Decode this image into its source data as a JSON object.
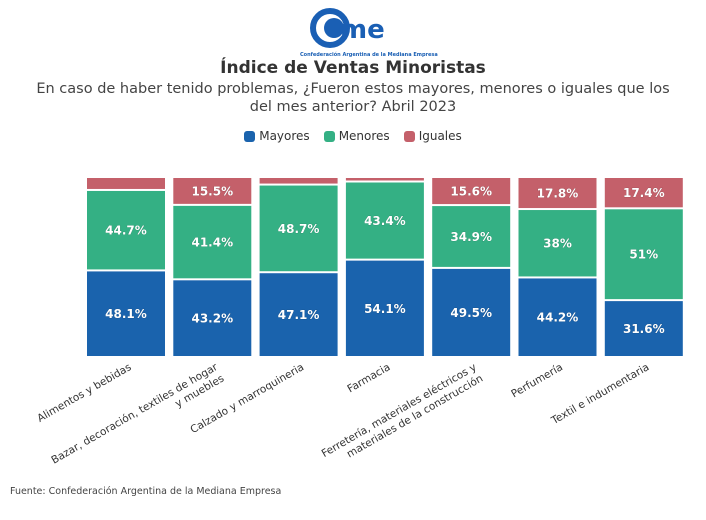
{
  "logo": {
    "text": "came",
    "subtitle": "Confederación Argentina de la Mediana Empresa"
  },
  "chart_data": {
    "type": "bar",
    "stacked": true,
    "title": "Índice de Ventas Minoristas",
    "subtitle": "En caso de haber tenido problemas, ¿Fueron estos mayores, menores o iguales que los del mes anterior? Abril 2023",
    "categories": [
      "Alimentos y bebidas",
      "Bazar, decoración, textiles de hogar y muebles",
      "Calzado y marroquineria",
      "Farmacia",
      "Ferretería, materiales eléctricos y materiales de la construcción",
      "Perfumería",
      "Textil e indumentaria"
    ],
    "series": [
      {
        "name": "Mayores",
        "color": "#1a63ad",
        "values": [
          48.1,
          43.2,
          47.1,
          54.1,
          49.5,
          44.2,
          31.6
        ],
        "labels": [
          "48.1%",
          "43.2%",
          "47.1%",
          "54.1%",
          "49.5%",
          "44.2%",
          "31.6%"
        ]
      },
      {
        "name": "Menores",
        "color": "#34b084",
        "values": [
          44.7,
          41.4,
          48.7,
          43.4,
          34.9,
          38,
          51
        ],
        "labels": [
          "44.7%",
          "41.4%",
          "48.7%",
          "43.4%",
          "34.9%",
          "38%",
          "51%"
        ]
      },
      {
        "name": "Iguales",
        "color": "#c4606a",
        "values": [
          7.2,
          15.5,
          4.2,
          2.5,
          15.6,
          17.8,
          17.4
        ],
        "labels": [
          "",
          "15.5%",
          "",
          "",
          "15.6%",
          "17.8%",
          "17.4%"
        ]
      }
    ],
    "ylim": [
      0,
      100
    ],
    "legend": "top-center",
    "grid": false
  },
  "source": "Fuente: Confederación Argentina de la Mediana Empresa"
}
